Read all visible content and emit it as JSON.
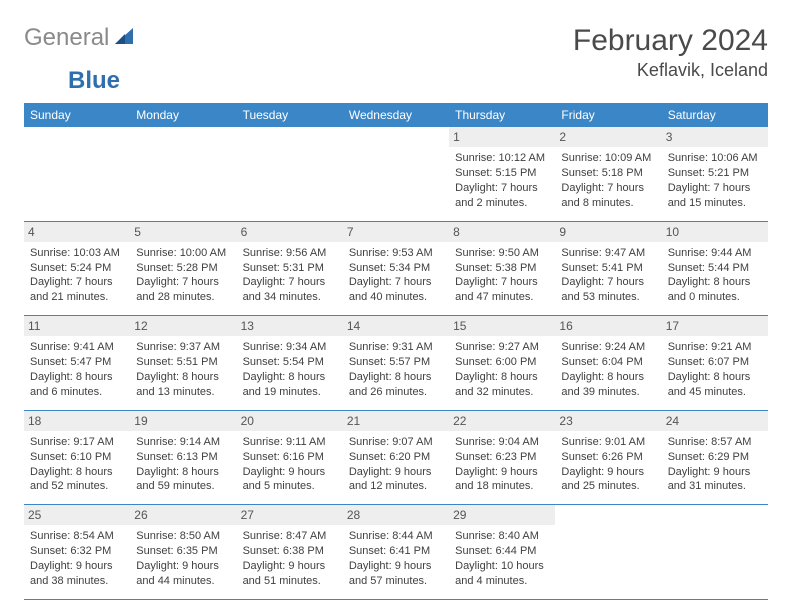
{
  "brand": {
    "gray": "General",
    "blue": "Blue"
  },
  "title": "February 2024",
  "location": "Keflavik, Iceland",
  "colors": {
    "header_bg": "#3b86c7",
    "header_text": "#ffffff",
    "date_strip_bg": "#eeeeee",
    "rule": "#3b86c7",
    "body_text": "#404040",
    "logo_gray": "#8a8a8a",
    "logo_blue": "#2f6fad"
  },
  "dayNames": [
    "Sunday",
    "Monday",
    "Tuesday",
    "Wednesday",
    "Thursday",
    "Friday",
    "Saturday"
  ],
  "weeks": [
    [
      {
        "empty": true
      },
      {
        "empty": true
      },
      {
        "empty": true
      },
      {
        "empty": true
      },
      {
        "num": "1",
        "sunrise": "10:12 AM",
        "sunset": "5:15 PM",
        "daylight": "7 hours and 2 minutes."
      },
      {
        "num": "2",
        "sunrise": "10:09 AM",
        "sunset": "5:18 PM",
        "daylight": "7 hours and 8 minutes."
      },
      {
        "num": "3",
        "sunrise": "10:06 AM",
        "sunset": "5:21 PM",
        "daylight": "7 hours and 15 minutes."
      }
    ],
    [
      {
        "num": "4",
        "sunrise": "10:03 AM",
        "sunset": "5:24 PM",
        "daylight": "7 hours and 21 minutes."
      },
      {
        "num": "5",
        "sunrise": "10:00 AM",
        "sunset": "5:28 PM",
        "daylight": "7 hours and 28 minutes."
      },
      {
        "num": "6",
        "sunrise": "9:56 AM",
        "sunset": "5:31 PM",
        "daylight": "7 hours and 34 minutes."
      },
      {
        "num": "7",
        "sunrise": "9:53 AM",
        "sunset": "5:34 PM",
        "daylight": "7 hours and 40 minutes."
      },
      {
        "num": "8",
        "sunrise": "9:50 AM",
        "sunset": "5:38 PM",
        "daylight": "7 hours and 47 minutes."
      },
      {
        "num": "9",
        "sunrise": "9:47 AM",
        "sunset": "5:41 PM",
        "daylight": "7 hours and 53 minutes."
      },
      {
        "num": "10",
        "sunrise": "9:44 AM",
        "sunset": "5:44 PM",
        "daylight": "8 hours and 0 minutes."
      }
    ],
    [
      {
        "num": "11",
        "sunrise": "9:41 AM",
        "sunset": "5:47 PM",
        "daylight": "8 hours and 6 minutes."
      },
      {
        "num": "12",
        "sunrise": "9:37 AM",
        "sunset": "5:51 PM",
        "daylight": "8 hours and 13 minutes."
      },
      {
        "num": "13",
        "sunrise": "9:34 AM",
        "sunset": "5:54 PM",
        "daylight": "8 hours and 19 minutes."
      },
      {
        "num": "14",
        "sunrise": "9:31 AM",
        "sunset": "5:57 PM",
        "daylight": "8 hours and 26 minutes."
      },
      {
        "num": "15",
        "sunrise": "9:27 AM",
        "sunset": "6:00 PM",
        "daylight": "8 hours and 32 minutes."
      },
      {
        "num": "16",
        "sunrise": "9:24 AM",
        "sunset": "6:04 PM",
        "daylight": "8 hours and 39 minutes."
      },
      {
        "num": "17",
        "sunrise": "9:21 AM",
        "sunset": "6:07 PM",
        "daylight": "8 hours and 45 minutes."
      }
    ],
    [
      {
        "num": "18",
        "sunrise": "9:17 AM",
        "sunset": "6:10 PM",
        "daylight": "8 hours and 52 minutes."
      },
      {
        "num": "19",
        "sunrise": "9:14 AM",
        "sunset": "6:13 PM",
        "daylight": "8 hours and 59 minutes."
      },
      {
        "num": "20",
        "sunrise": "9:11 AM",
        "sunset": "6:16 PM",
        "daylight": "9 hours and 5 minutes."
      },
      {
        "num": "21",
        "sunrise": "9:07 AM",
        "sunset": "6:20 PM",
        "daylight": "9 hours and 12 minutes."
      },
      {
        "num": "22",
        "sunrise": "9:04 AM",
        "sunset": "6:23 PM",
        "daylight": "9 hours and 18 minutes."
      },
      {
        "num": "23",
        "sunrise": "9:01 AM",
        "sunset": "6:26 PM",
        "daylight": "9 hours and 25 minutes."
      },
      {
        "num": "24",
        "sunrise": "8:57 AM",
        "sunset": "6:29 PM",
        "daylight": "9 hours and 31 minutes."
      }
    ],
    [
      {
        "num": "25",
        "sunrise": "8:54 AM",
        "sunset": "6:32 PM",
        "daylight": "9 hours and 38 minutes."
      },
      {
        "num": "26",
        "sunrise": "8:50 AM",
        "sunset": "6:35 PM",
        "daylight": "9 hours and 44 minutes."
      },
      {
        "num": "27",
        "sunrise": "8:47 AM",
        "sunset": "6:38 PM",
        "daylight": "9 hours and 51 minutes."
      },
      {
        "num": "28",
        "sunrise": "8:44 AM",
        "sunset": "6:41 PM",
        "daylight": "9 hours and 57 minutes."
      },
      {
        "num": "29",
        "sunrise": "8:40 AM",
        "sunset": "6:44 PM",
        "daylight": "10 hours and 4 minutes."
      },
      {
        "empty": true
      },
      {
        "empty": true
      }
    ]
  ]
}
